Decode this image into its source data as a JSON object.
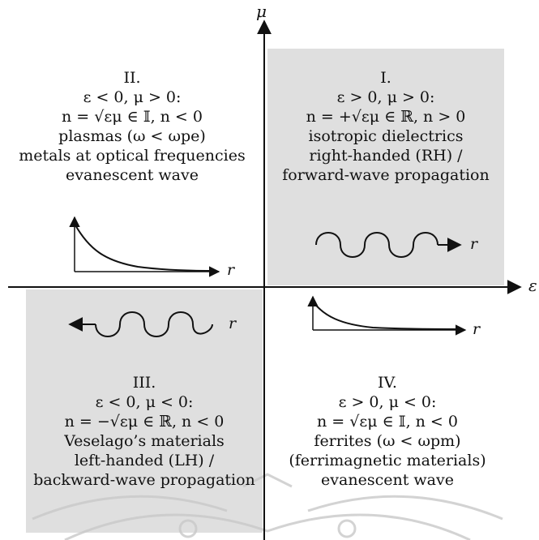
{
  "colors": {
    "shade": "#dfdfdf",
    "ink": "#111111",
    "watermark": "#c9c9c9"
  },
  "axes": {
    "vertical_label": "μ",
    "horizontal_label": "ε"
  },
  "quadrants": {
    "q1": {
      "lines": [
        "I.",
        "ε > 0, μ > 0:",
        "n = +√εμ ∈ ℝ, n > 0",
        "isotropic dielectrics",
        "right-handed (RH) /",
        "forward-wave propagation"
      ],
      "wave_label": "r",
      "shaded": true
    },
    "q2": {
      "lines": [
        "II.",
        "ε < 0, μ > 0:",
        "n = √εμ ∈ 𝕀, n < 0",
        "plasmas (ω < ωpe)",
        "metals at optical frequencies",
        "evanescent wave"
      ],
      "decay_label": "r",
      "shaded": false
    },
    "q3": {
      "lines": [
        "III.",
        "ε < 0, μ < 0:",
        "n = −√εμ ∈ ℝ, n < 0",
        "Veselago’s materials",
        "left-handed (LH) /",
        "backward-wave propagation"
      ],
      "wave_label": "r",
      "shaded": true
    },
    "q4": {
      "lines": [
        "IV.",
        "ε > 0, μ < 0:",
        "n = √εμ ∈ 𝕀, n < 0",
        "ferrites (ω < ωpm)",
        "(ferrimagnetic materials)",
        "evanescent wave"
      ],
      "decay_label": "r",
      "shaded": false
    }
  }
}
